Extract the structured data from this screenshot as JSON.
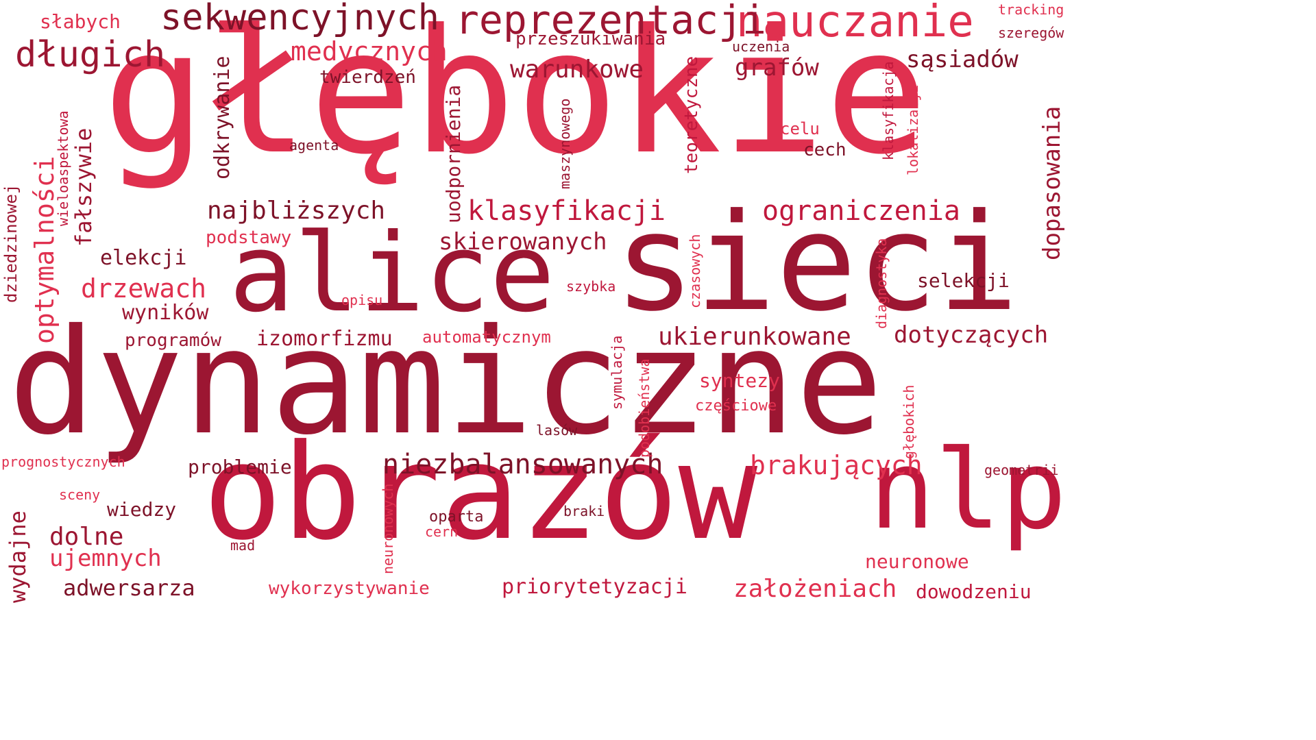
{
  "palette": {
    "background": "#ffffff",
    "crimson": "#e0304f",
    "red": "#c0183d",
    "dark_red": "#9c1632",
    "maroon": "#7d1228"
  },
  "words": [
    "głębokie",
    "dynamiczne",
    "alice",
    "sieci",
    "obrazów",
    "nlp",
    "nauczanie",
    "reprezentacji",
    "sekwencyjnych",
    "długich",
    "medycznych",
    "warunkowe",
    "grafów",
    "sąsiadów",
    "klasyfikacji",
    "ograniczenia",
    "najbliższych",
    "skierowanych",
    "drzewach",
    "ukierunkowane",
    "dotyczących",
    "niezbalansowanych",
    "brakujących",
    "problemie",
    "neuronowe",
    "założeniach",
    "dowodzeniu",
    "priorytetyzacji",
    "wykorzystywanie",
    "adwersarza",
    "ujemnych",
    "dolne",
    "wiedzy",
    "wyników",
    "programów",
    "izomorfizmu",
    "automatycznym",
    "podstawy",
    "elekcji",
    "selekcji",
    "syntezy",
    "częściowe",
    "twierdzeń",
    "przeszukiwania",
    "uczenia",
    "słabych",
    "tracking",
    "szeregów",
    "celu",
    "cech",
    "agenta",
    "opisu",
    "szybka",
    "lasów",
    "sceny",
    "oparta",
    "cern",
    "braki",
    "mad",
    "geometrii",
    "prognostycznych",
    "optymalności",
    "fałszywie",
    "dziedzinowej",
    "wieloaspektowa",
    "odkrywanie",
    "uodpornienia",
    "maszynowego",
    "teoretyczne",
    "klasyfikacja",
    "lokalizacji",
    "dopasowania",
    "czasowych",
    "diagnostyka",
    "symulacja",
    "podobieństwa",
    "neuronowych",
    "głębokich",
    "wydajne"
  ]
}
